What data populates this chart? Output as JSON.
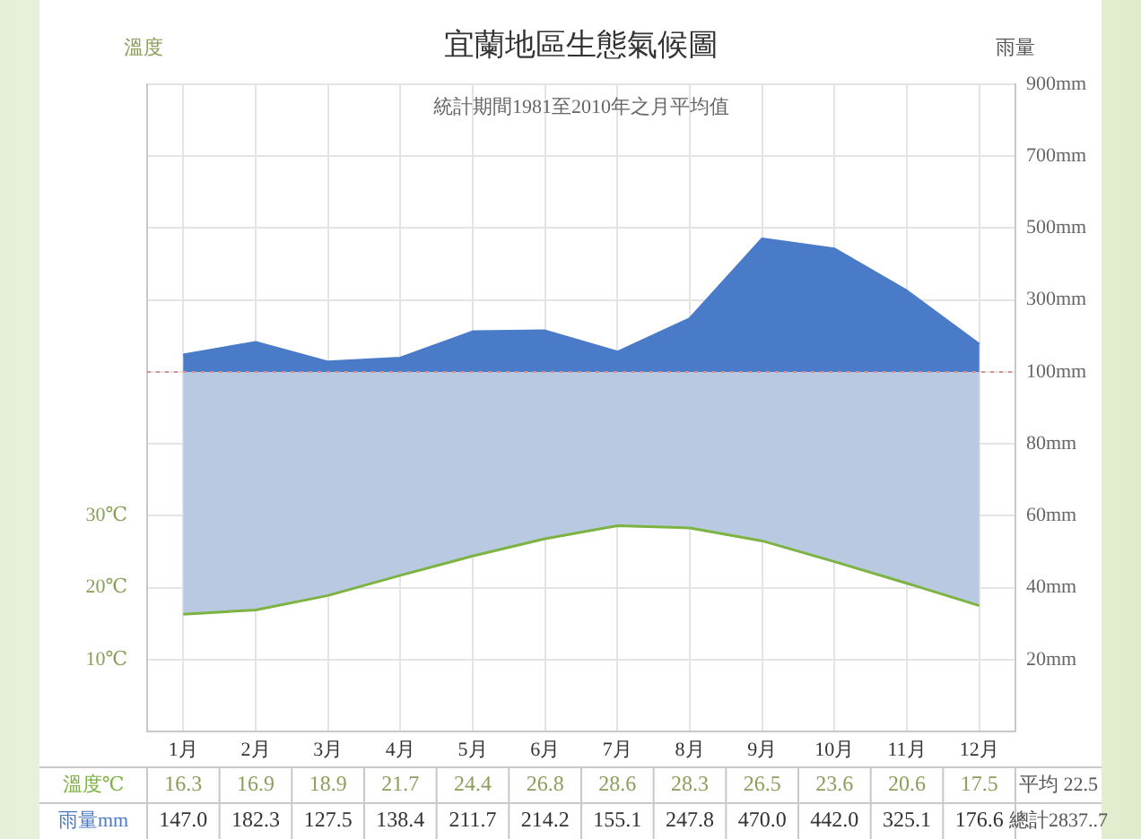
{
  "chart_data": {
    "type": "line",
    "title": "宜蘭地區生態氣候圖",
    "subtitle": "統計期間1981至2010年之月平均值",
    "ylabel": "溫度",
    "y2label": "雨量",
    "categories": [
      "1月",
      "2月",
      "3月",
      "4月",
      "5月",
      "6月",
      "7月",
      "8月",
      "9月",
      "10月",
      "11月",
      "12月"
    ],
    "series": [
      {
        "name": "溫度℃",
        "color": "#7cb342",
        "values": [
          16.3,
          16.9,
          18.9,
          21.7,
          24.4,
          26.8,
          28.6,
          28.3,
          26.5,
          23.6,
          20.6,
          17.5
        ],
        "value_labels": [
          "16.3",
          "16.9",
          "18.9",
          "21.7",
          "24.4",
          "26.8",
          "28.6",
          "28.3",
          "26.5",
          "23.6",
          "20.6",
          "17.5"
        ],
        "lower": [
          16.3,
          16.9,
          18.9,
          21.7,
          24.4,
          26.8,
          28.6,
          28.3,
          26.5,
          23.6,
          20.6,
          17.5
        ],
        "upper": [
          50,
          50,
          50,
          50,
          50,
          50,
          50,
          50,
          50,
          50,
          50,
          50
        ]
      },
      {
        "name": "雨量mm",
        "type": "area",
        "color": "#4a7bc8",
        "axis": "y3",
        "values": [
          147.0,
          182.3,
          127.5,
          138.4,
          211.7,
          214.2,
          155.1,
          247.8,
          470.0,
          442.0,
          325.1,
          176.6
        ],
        "value_labels": [
          "147.0",
          "182.3",
          "127.5",
          "138.4",
          "211.7",
          "214.2",
          "155.1",
          "247.8",
          "470.0",
          "442.0",
          "325.1",
          "176.6"
        ]
      }
    ],
    "ylim": [
      0,
      90
    ],
    "yticks": [
      {
        "value": 10,
        "label": "10℃"
      },
      {
        "value": 20,
        "label": "20℃"
      },
      {
        "value": 30,
        "label": "30℃"
      }
    ],
    "y2lim": [
      0,
      180
    ],
    "y2ticks": [
      {
        "value": 20,
        "label": "20mm"
      },
      {
        "value": 40,
        "label": "40mm"
      },
      {
        "value": 60,
        "label": "60mm"
      },
      {
        "value": 80,
        "label": "80mm"
      }
    ],
    "y3lim": [
      -900,
      900
    ],
    "y3ticks": [
      {
        "value": 100,
        "label": "100mm"
      },
      {
        "value": 300,
        "label": "300mm"
      },
      {
        "value": 500,
        "label": "500mm"
      },
      {
        "value": 700,
        "label": "700mm"
      },
      {
        "value": 900,
        "label": "900mm"
      }
    ],
    "ref_lines": [
      {
        "axis": "y3",
        "value": 100,
        "color": "#d89090",
        "line_style": "dotted"
      }
    ],
    "annotations": [
      "平均 22.5",
      "總計2837..7"
    ],
    "grid": true,
    "legend": false,
    "marker": "none",
    "line_style": "solid"
  }
}
